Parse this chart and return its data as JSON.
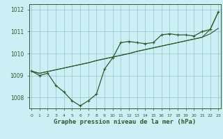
{
  "title": "Graphe pression niveau de la mer (hPa)",
  "background_color": "#cceef5",
  "grid_color": "#99cccc",
  "line_color": "#2d5a2d",
  "x_values": [
    0,
    1,
    2,
    3,
    4,
    5,
    6,
    7,
    8,
    9,
    10,
    11,
    12,
    13,
    14,
    15,
    16,
    17,
    18,
    19,
    20,
    21,
    22,
    23
  ],
  "series1": [
    1009.2,
    1009.0,
    1009.1,
    1008.55,
    1008.25,
    1007.85,
    1007.62,
    1007.85,
    1008.15,
    1009.3,
    1009.8,
    1010.5,
    1010.55,
    1010.5,
    1010.45,
    1010.5,
    1010.85,
    1010.9,
    1010.85,
    1010.85,
    1010.8,
    1011.0,
    1011.1,
    1011.9
  ],
  "series2_lower": [
    1009.2,
    1009.1,
    1009.18,
    1009.26,
    1009.34,
    1009.42,
    1009.5,
    1009.58,
    1009.68,
    1009.76,
    1009.84,
    1009.92,
    1010.0,
    1010.1,
    1010.18,
    1010.26,
    1010.34,
    1010.42,
    1010.5,
    1010.58,
    1010.66,
    1010.74,
    1010.9,
    1011.15
  ],
  "series3_upper": [
    1009.2,
    1009.1,
    1009.18,
    1009.26,
    1009.34,
    1009.42,
    1009.5,
    1009.58,
    1009.68,
    1009.76,
    1009.84,
    1009.92,
    1010.0,
    1010.1,
    1010.18,
    1010.26,
    1010.34,
    1010.42,
    1010.5,
    1010.58,
    1010.66,
    1010.74,
    1011.1,
    1011.9
  ],
  "ylim": [
    1007.5,
    1012.25
  ],
  "yticks": [
    1008,
    1009,
    1010,
    1011,
    1012
  ],
  "xlim": [
    -0.3,
    23.3
  ],
  "xticks": [
    0,
    1,
    2,
    3,
    4,
    5,
    6,
    7,
    8,
    9,
    10,
    11,
    12,
    13,
    14,
    15,
    16,
    17,
    18,
    19,
    20,
    21,
    22,
    23
  ]
}
